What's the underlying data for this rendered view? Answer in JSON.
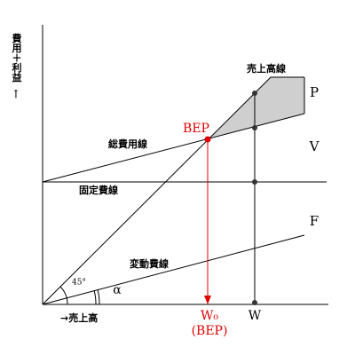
{
  "axes": {
    "y_label": "費用＋利益",
    "y_arrow": "↑",
    "x_label": "→売上高"
  },
  "lines": {
    "sales": "売上高線",
    "total_cost": "総費用線",
    "fixed_cost": "固定費線",
    "variable_cost": "変動費線"
  },
  "points": {
    "bep": "BEP",
    "w0": "W₀",
    "w0_note": "(BEP)",
    "w": "W"
  },
  "regions": {
    "profit": "P",
    "variable": "V",
    "fixed": "F"
  },
  "angles": {
    "diagonal": "45°",
    "alpha": "α"
  }
}
